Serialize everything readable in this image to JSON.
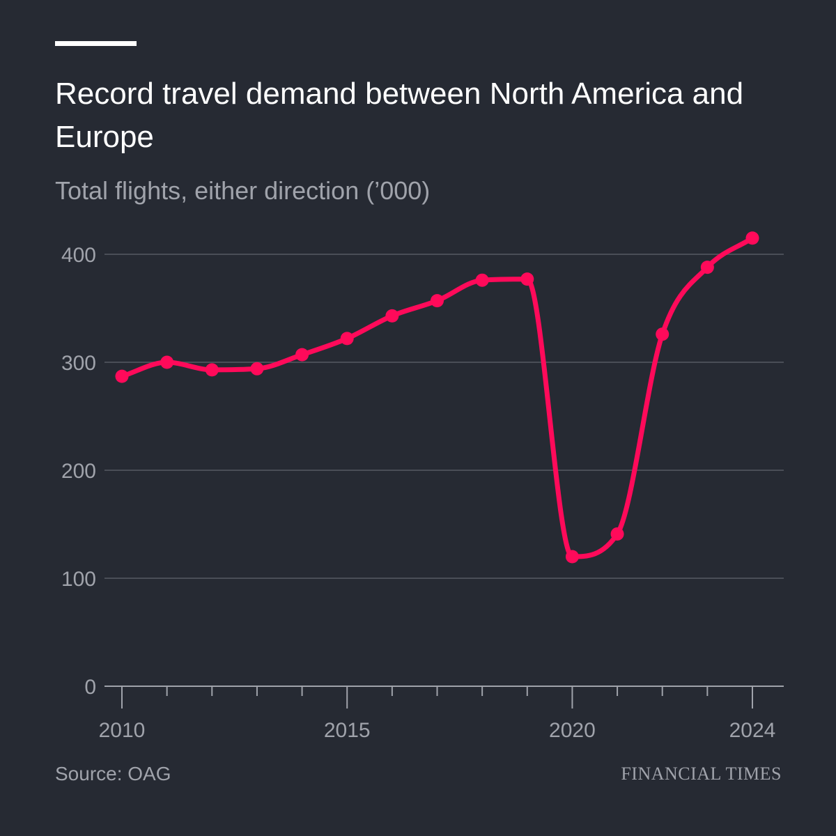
{
  "header": {
    "title": "Record travel demand between North America and Europe",
    "subtitle": "Total flights, either direction (’000)"
  },
  "footer": {
    "source": "Source: OAG",
    "brand": "FINANCIAL TIMES"
  },
  "colors": {
    "background": "#262a33",
    "line": "#ff0a5a",
    "grid": "#4a4e57",
    "axis": "#a0a3ab",
    "text": "#ffffff"
  },
  "chart_data": {
    "type": "line",
    "title": "Record travel demand between North America and Europe",
    "subtitle": "Total flights, either direction (’000)",
    "x": [
      2010,
      2011,
      2012,
      2013,
      2014,
      2015,
      2016,
      2017,
      2018,
      2019,
      2020,
      2021,
      2022,
      2023,
      2024
    ],
    "series": [
      {
        "values": [
          287,
          300,
          293,
          294,
          307,
          322,
          343,
          357,
          376,
          377,
          120,
          141,
          326,
          388,
          415
        ]
      }
    ],
    "xlim": [
      2010,
      2024
    ],
    "ylim": [
      0,
      400
    ],
    "x_tick_labels": [
      "2010",
      "2015",
      "2020",
      "2024"
    ],
    "y_tick_labels": [
      "400",
      "300",
      "200",
      "100",
      "0"
    ],
    "grid": true,
    "legend": "none"
  }
}
